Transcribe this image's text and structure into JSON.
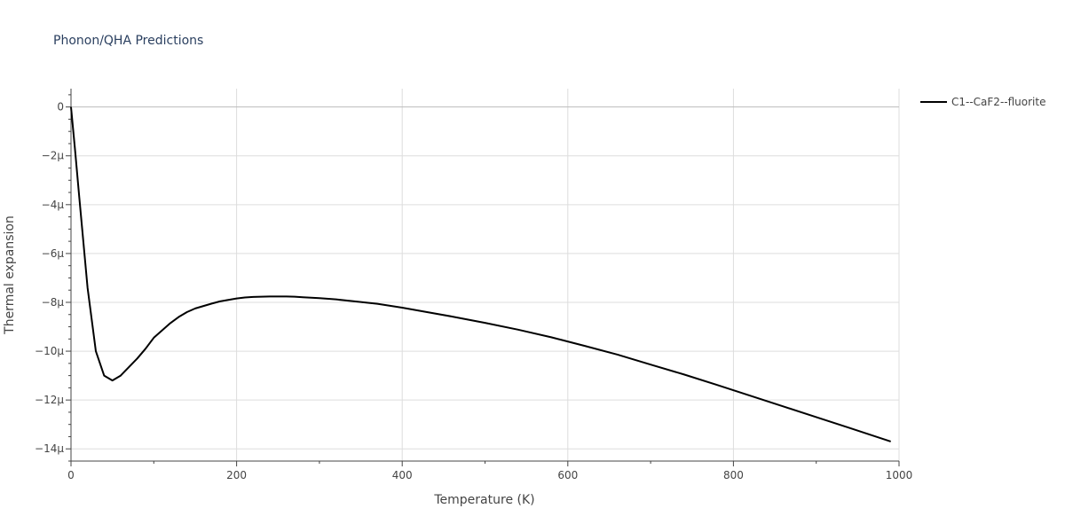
{
  "chart_data": {
    "type": "line",
    "title": "Phonon/QHA Predictions",
    "xlabel": "Temperature (K)",
    "ylabel": "Thermal expansion",
    "xlim": [
      0,
      1000
    ],
    "ylim": [
      -14.5,
      0.75
    ],
    "x_ticks": [
      0,
      200,
      400,
      600,
      800,
      1000
    ],
    "x_tick_labels": [
      "0",
      "200",
      "400",
      "600",
      "800",
      "1000"
    ],
    "y_ticks": [
      0,
      -2,
      -4,
      -6,
      -8,
      -10,
      -12,
      -14
    ],
    "y_tick_labels": [
      "0",
      "−2μ",
      "−4μ",
      "−6μ",
      "−8μ",
      "−10μ",
      "−12μ",
      "−14μ"
    ],
    "y_unit_note": "values in units of 1e-6",
    "grid": true,
    "legend_position": "top-right",
    "series": [
      {
        "name": "C1--CaF2--fluorite",
        "color": "#000000",
        "x": [
          0,
          5,
          10,
          20,
          30,
          40,
          50,
          60,
          70,
          80,
          90,
          100,
          110,
          120,
          130,
          140,
          150,
          160,
          170,
          180,
          190,
          200,
          210,
          220,
          230,
          240,
          250,
          260,
          270,
          280,
          300,
          320,
          340,
          370,
          400,
          430,
          460,
          500,
          540,
          580,
          620,
          660,
          700,
          740,
          780,
          820,
          860,
          900,
          940,
          990
        ],
        "values": [
          0,
          -1.8,
          -3.7,
          -7.4,
          -10.0,
          -11.0,
          -11.2,
          -11.0,
          -10.65,
          -10.3,
          -9.9,
          -9.45,
          -9.15,
          -8.85,
          -8.6,
          -8.4,
          -8.25,
          -8.15,
          -8.05,
          -7.96,
          -7.9,
          -7.84,
          -7.8,
          -7.78,
          -7.77,
          -7.76,
          -7.76,
          -7.76,
          -7.77,
          -7.79,
          -7.83,
          -7.88,
          -7.95,
          -8.06,
          -8.22,
          -8.4,
          -8.58,
          -8.84,
          -9.12,
          -9.43,
          -9.78,
          -10.14,
          -10.55,
          -10.95,
          -11.38,
          -11.82,
          -12.26,
          -12.7,
          -13.14,
          -13.7
        ]
      }
    ]
  }
}
